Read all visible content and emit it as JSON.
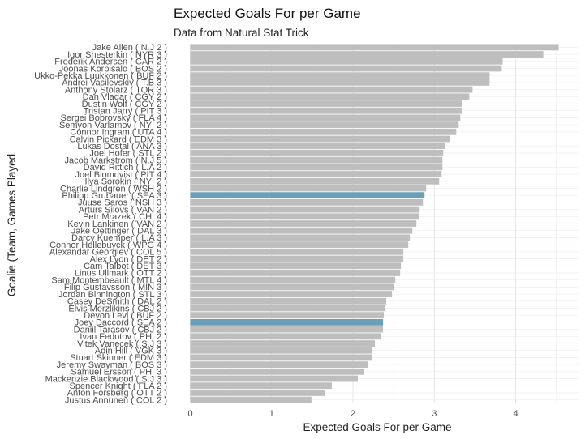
{
  "chart_data": {
    "type": "bar",
    "orientation": "horizontal",
    "title": "Expected Goals For per Game",
    "subtitle": "Data from Natural Stat Trick",
    "xlabel": "Expected Goals For per Game",
    "ylabel": "Goalie (Team, Games Played",
    "xlim": [
      0,
      4.6
    ],
    "xticks": [
      0,
      1,
      2,
      3,
      4
    ],
    "grid": true,
    "colors": {
      "default": "#bebebe",
      "highlight": "#6a9fb5"
    },
    "categories": [
      "Jake Allen ( N.J 2 )",
      "Igor Shesterkin ( NYR 3 )",
      "Frederik Andersen ( CAR 2 )",
      "Joonas Korpisalo ( BOS 2 )",
      "Ukko-Pekka Luukkonen ( BUF 2 )",
      "Andrei Vasilevskiy ( T.B 3 )",
      "Anthony Stolarz ( TOR 3 )",
      "Dan Vladar ( CGY 2 )",
      "Dustin Wolf ( CGY 2 )",
      "Tristan Jarry ( PIT 3 )",
      "Sergei Bobrovsky ( FLA 4 )",
      "Semyon Varlamov ( NYI 2 )",
      "Connor Ingram ( UTA 4 )",
      "Calvin Pickard ( EDM 3 )",
      "Lukas Dostal ( ANA 3 )",
      "Joel Hofer ( STL 2 )",
      "Jacob Markstrom ( N.J 5 )",
      "David Rittich ( L.A 2 )",
      "Joel Blomqvist ( PIT 4 )",
      "Ilya Sorokin ( NYI 2 )",
      "Charlie Lindgren ( WSH 2 )",
      "Philipp Grubauer ( SEA 3 )",
      "Juuse Saros ( NSH 3 )",
      "Arturs Silovs ( VAN 2 )",
      "Petr Mrazek ( CHI 4 )",
      "Kevin Lankinen ( VAN 2 )",
      "Jake Oettinger ( DAL 3 )",
      "Darcy Kuemper ( L.A 3 )",
      "Connor Hellebuyck ( WPG 4 )",
      "Alexandar Georgiev ( COL 5 )",
      "Alex Lyon ( DET 2 )",
      "Cam Talbot ( DET 3 )",
      "Linus Ullmark ( OTT 2 )",
      "Sam Montembeault ( MTL 4 )",
      "Filip Gustavsson ( MIN 3 )",
      "Jordan Binnington ( STL 3 )",
      "Casey DeSmith ( DAL 2 )",
      "Elvis Merzlikins ( CBJ 2 )",
      "Devon Levi ( BUF 2 )",
      "Joey Daccord ( SEA 2 )",
      "Daniil Tarasov ( CBJ 2 )",
      "Ivan Fedotov ( PHI 2 )",
      "Vitek Vanecek ( S.J 3 )",
      "Adin Hill ( VGK 3 )",
      "Stuart Skinner ( EDM 3 )",
      "Jeremy Swayman ( BOS 3 )",
      "Samuel Ersson ( PHI 3 )",
      "Mackenzie Blackwood ( S.J 3 )",
      "Spencer Knight ( FLA 2 )",
      "Anton Forsberg ( OTT 2 )",
      "Justus Annunen ( COL 2 )"
    ],
    "values": [
      4.53,
      4.34,
      3.84,
      3.83,
      3.68,
      3.68,
      3.47,
      3.43,
      3.34,
      3.34,
      3.32,
      3.3,
      3.27,
      3.19,
      3.13,
      3.11,
      3.1,
      3.1,
      3.09,
      3.06,
      2.9,
      2.88,
      2.86,
      2.82,
      2.81,
      2.78,
      2.73,
      2.7,
      2.68,
      2.62,
      2.62,
      2.59,
      2.58,
      2.52,
      2.5,
      2.48,
      2.41,
      2.4,
      2.38,
      2.37,
      2.37,
      2.35,
      2.27,
      2.24,
      2.23,
      2.19,
      2.14,
      2.06,
      1.74,
      1.66,
      1.49
    ],
    "highlight": [
      false,
      false,
      false,
      false,
      false,
      false,
      false,
      false,
      false,
      false,
      false,
      false,
      false,
      false,
      false,
      false,
      false,
      false,
      false,
      false,
      false,
      true,
      false,
      false,
      false,
      false,
      false,
      false,
      false,
      false,
      false,
      false,
      false,
      false,
      false,
      false,
      false,
      false,
      false,
      true,
      false,
      false,
      false,
      false,
      false,
      false,
      false,
      false,
      false,
      false,
      false
    ]
  }
}
